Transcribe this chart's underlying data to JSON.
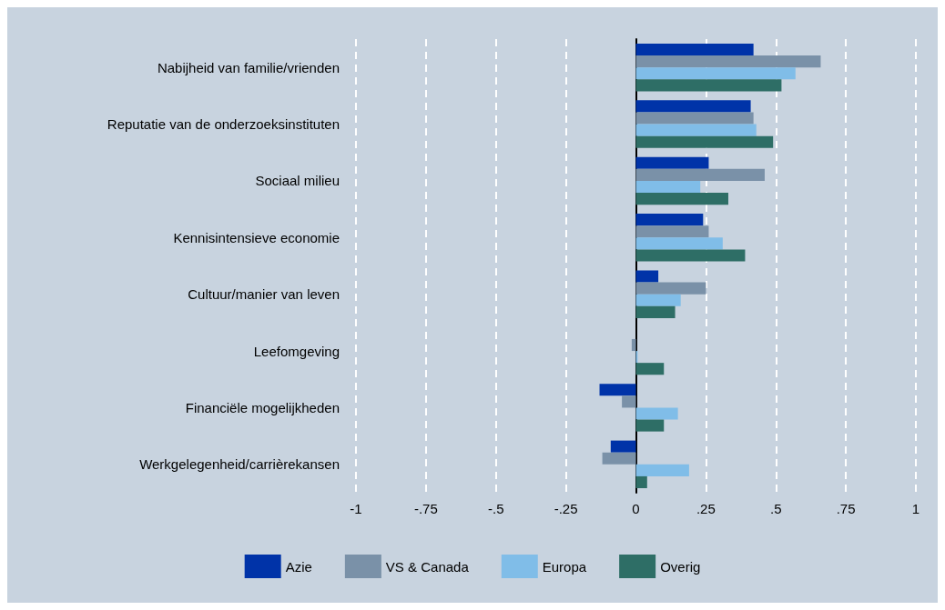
{
  "chart_data": {
    "type": "bar",
    "orientation": "horizontal",
    "categories": [
      "Nabijheid van familie/vrienden",
      "Reputatie van de onderzoeksinstituten",
      "Sociaal milieu",
      "Kennisintensieve economie",
      "Cultuur/manier van leven",
      "Leefomgeving",
      "Financiële mogelijkheden",
      "Werkgelegenheid/carrièrekansen"
    ],
    "series": [
      {
        "name": "Azie",
        "color": "#0033a8",
        "values": [
          0.42,
          0.41,
          0.26,
          0.24,
          0.08,
          0,
          -0.13,
          -0.09
        ]
      },
      {
        "name": "VS & Canada",
        "color": "#7a91a8",
        "values": [
          0.66,
          0.42,
          0.46,
          0.26,
          0.25,
          -0.015,
          -0.05,
          -0.12
        ]
      },
      {
        "name": "Europa",
        "color": "#80bde8",
        "values": [
          0.57,
          0.43,
          0.23,
          0.31,
          0.16,
          0.006,
          0.15,
          0.19
        ]
      },
      {
        "name": "Overig",
        "color": "#2e6e66",
        "values": [
          0.52,
          0.49,
          0.33,
          0.39,
          0.14,
          0.1,
          0.1,
          0.04
        ]
      }
    ],
    "xlim": [
      -1,
      1
    ],
    "xticks": [
      {
        "value": -1,
        "label": "-1"
      },
      {
        "value": -0.75,
        "label": "-.75"
      },
      {
        "value": -0.5,
        "label": "-.5"
      },
      {
        "value": -0.25,
        "label": "-.25"
      },
      {
        "value": 0,
        "label": "0"
      },
      {
        "value": 0.25,
        "label": ".25"
      },
      {
        "value": 0.5,
        "label": ".5"
      },
      {
        "value": 0.75,
        "label": ".75"
      },
      {
        "value": 1,
        "label": "1"
      }
    ],
    "grid": "x",
    "legend": "bottom"
  }
}
